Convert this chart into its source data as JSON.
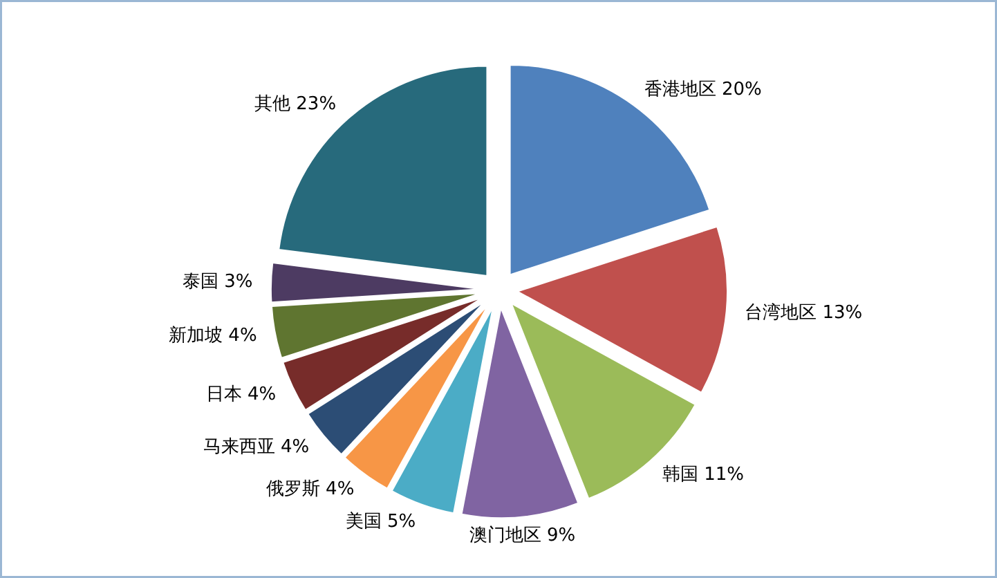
{
  "chart_data": {
    "type": "pie",
    "categories": [
      "香港地区",
      "台湾地区",
      "韩国",
      "澳门地区",
      "美国",
      "俄罗斯",
      "马来西亚",
      "日本",
      "新加坡",
      "泰国",
      "其他"
    ],
    "values": [
      20,
      13,
      11,
      9,
      5,
      4,
      4,
      4,
      4,
      3,
      23
    ],
    "value_labels": [
      "20%",
      "13%",
      "11%",
      "9%",
      "5%",
      "4%",
      "4%",
      "4%",
      "4%",
      "3%",
      "23%"
    ],
    "colors": [
      "#4f81bd",
      "#c0504d",
      "#9bbb59",
      "#8064a2",
      "#4bacc6",
      "#f79646",
      "#2c4d75",
      "#772c2a",
      "#5f7530",
      "#4d3b62",
      "#276a7c"
    ]
  }
}
